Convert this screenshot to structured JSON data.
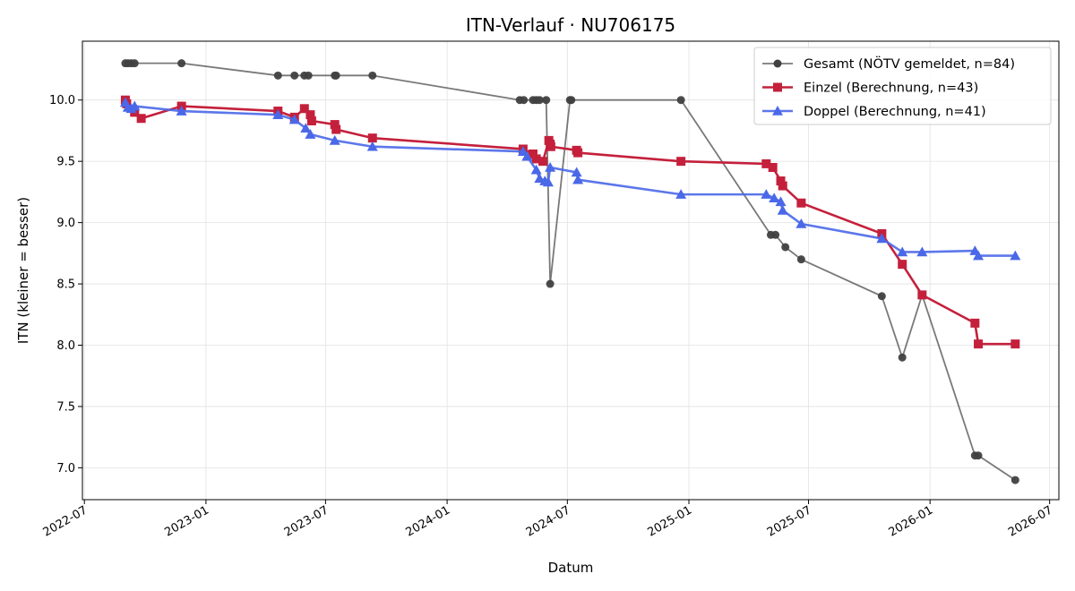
{
  "chart_data": {
    "type": "line",
    "title": "ITN-Verlauf · NU706175",
    "xlabel": "Datum",
    "ylabel": "ITN  (kleiner = besser)",
    "x_axis_type": "date",
    "xlim": [
      "2022-06-28",
      "2026-07-15"
    ],
    "ylim": [
      6.74,
      10.48
    ],
    "x_ticks": [
      "2022-07",
      "2023-01",
      "2023-07",
      "2024-01",
      "2024-07",
      "2025-01",
      "2025-07",
      "2026-01",
      "2026-07"
    ],
    "y_ticks": [
      "7.0",
      "7.5",
      "8.0",
      "8.5",
      "9.0",
      "9.5",
      "10.0"
    ],
    "grid": true,
    "legend_position": "top-right",
    "series": [
      {
        "name": "Gesamt (NÖTV gemeldet, n=84)",
        "color": "#404040",
        "marker": "circle",
        "points": [
          [
            "2022-09-01",
            10.3
          ],
          [
            "2022-09-05",
            10.3
          ],
          [
            "2022-09-10",
            10.3
          ],
          [
            "2022-09-15",
            10.3
          ],
          [
            "2022-11-25",
            10.3
          ],
          [
            "2023-04-20",
            10.2
          ],
          [
            "2023-05-15",
            10.2
          ],
          [
            "2023-05-30",
            10.2
          ],
          [
            "2023-06-05",
            10.2
          ],
          [
            "2023-07-15",
            10.2
          ],
          [
            "2023-07-17",
            10.2
          ],
          [
            "2023-09-10",
            10.2
          ],
          [
            "2024-04-20",
            10.0
          ],
          [
            "2024-04-26",
            10.0
          ],
          [
            "2024-05-10",
            10.0
          ],
          [
            "2024-05-15",
            10.0
          ],
          [
            "2024-05-20",
            10.0
          ],
          [
            "2024-05-30",
            10.0
          ],
          [
            "2024-06-05",
            8.5
          ],
          [
            "2024-07-05",
            10.0
          ],
          [
            "2024-07-07",
            10.0
          ],
          [
            "2024-12-20",
            10.0
          ],
          [
            "2025-05-05",
            8.9
          ],
          [
            "2025-05-12",
            8.9
          ],
          [
            "2025-05-27",
            8.8
          ],
          [
            "2025-06-20",
            8.7
          ],
          [
            "2025-10-20",
            8.4
          ],
          [
            "2025-11-20",
            7.9
          ],
          [
            "2025-12-20",
            8.41
          ],
          [
            "2026-03-10",
            7.1
          ],
          [
            "2026-03-15",
            7.1
          ],
          [
            "2026-05-10",
            6.9
          ]
        ]
      },
      {
        "name": "Einzel (Berechnung, n=43)",
        "color": "#c4203c",
        "marker": "square",
        "points": [
          [
            "2022-09-01",
            10.0
          ],
          [
            "2022-09-03",
            9.97
          ],
          [
            "2022-09-15",
            9.9
          ],
          [
            "2022-09-25",
            9.85
          ],
          [
            "2022-11-25",
            9.95
          ],
          [
            "2023-04-20",
            9.91
          ],
          [
            "2023-05-15",
            9.86
          ],
          [
            "2023-05-30",
            9.93
          ],
          [
            "2023-06-08",
            9.88
          ],
          [
            "2023-06-10",
            9.83
          ],
          [
            "2023-07-15",
            9.8
          ],
          [
            "2023-07-17",
            9.76
          ],
          [
            "2023-09-10",
            9.69
          ],
          [
            "2024-04-25",
            9.6
          ],
          [
            "2024-05-10",
            9.56
          ],
          [
            "2024-05-15",
            9.52
          ],
          [
            "2024-05-25",
            9.5
          ],
          [
            "2024-06-03",
            9.67
          ],
          [
            "2024-06-05",
            9.64
          ],
          [
            "2024-06-06",
            9.62
          ],
          [
            "2024-07-15",
            9.59
          ],
          [
            "2024-07-17",
            9.57
          ],
          [
            "2024-12-20",
            9.5
          ],
          [
            "2025-04-28",
            9.48
          ],
          [
            "2025-05-08",
            9.45
          ],
          [
            "2025-05-20",
            9.34
          ],
          [
            "2025-05-23",
            9.3
          ],
          [
            "2025-06-20",
            9.16
          ],
          [
            "2025-10-20",
            8.91
          ],
          [
            "2025-11-20",
            8.66
          ],
          [
            "2025-12-20",
            8.41
          ],
          [
            "2026-03-10",
            8.18
          ],
          [
            "2026-03-15",
            8.01
          ],
          [
            "2026-05-10",
            8.01
          ]
        ]
      },
      {
        "name": "Doppel (Berechnung, n=41)",
        "color": "#4a68e8",
        "marker": "triangle",
        "points": [
          [
            "2022-09-01",
            9.98
          ],
          [
            "2022-09-05",
            9.94
          ],
          [
            "2022-09-10",
            9.93
          ],
          [
            "2022-09-15",
            9.95
          ],
          [
            "2022-11-25",
            9.91
          ],
          [
            "2023-04-20",
            9.88
          ],
          [
            "2023-05-15",
            9.84
          ],
          [
            "2023-06-01",
            9.77
          ],
          [
            "2023-06-08",
            9.72
          ],
          [
            "2023-07-15",
            9.67
          ],
          [
            "2023-09-10",
            9.62
          ],
          [
            "2024-04-25",
            9.58
          ],
          [
            "2024-05-01",
            9.54
          ],
          [
            "2024-05-15",
            9.43
          ],
          [
            "2024-05-20",
            9.36
          ],
          [
            "2024-05-28",
            9.34
          ],
          [
            "2024-06-02",
            9.33
          ],
          [
            "2024-06-05",
            9.45
          ],
          [
            "2024-07-15",
            9.41
          ],
          [
            "2024-07-17",
            9.35
          ],
          [
            "2024-12-20",
            9.23
          ],
          [
            "2025-04-28",
            9.23
          ],
          [
            "2025-05-10",
            9.2
          ],
          [
            "2025-05-20",
            9.17
          ],
          [
            "2025-05-23",
            9.1
          ],
          [
            "2025-06-20",
            8.99
          ],
          [
            "2025-10-20",
            8.87
          ],
          [
            "2025-11-20",
            8.76
          ],
          [
            "2025-12-20",
            8.76
          ],
          [
            "2026-03-10",
            8.77
          ],
          [
            "2026-03-15",
            8.73
          ],
          [
            "2026-05-10",
            8.73
          ]
        ]
      }
    ]
  }
}
